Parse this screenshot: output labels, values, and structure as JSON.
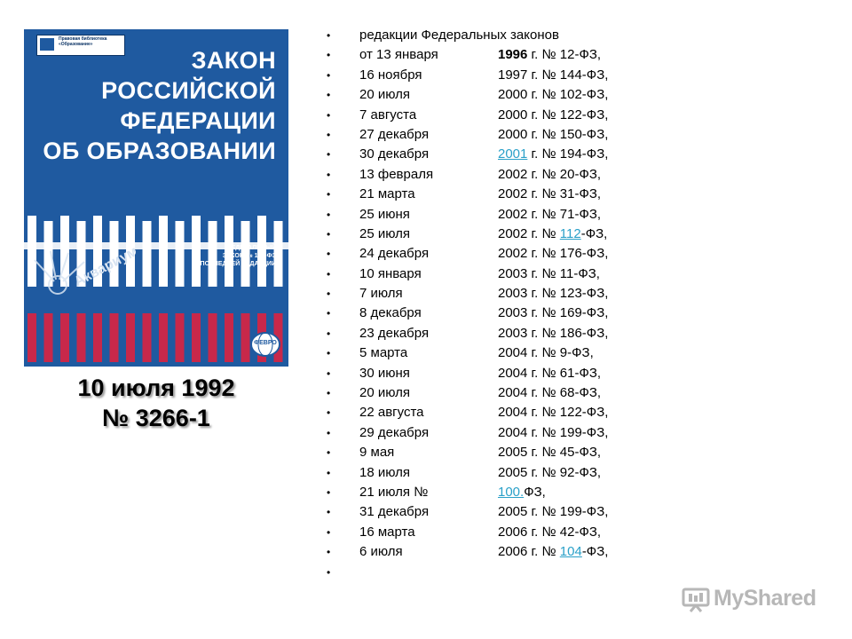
{
  "cover": {
    "title_lines": [
      "ЗАКОН",
      "РОССИЙСКОЙ",
      "ФЕДЕРАЦИИ",
      "ОБ ОБРАЗОВАНИИ"
    ],
    "publisher_text": "Правовая библиотека «Образование»",
    "subtitle_lines": [
      "ФЕДЕРАЛЬНЫЙ",
      "ЗАКОН № 122-ФЗ",
      "В ПОСЛЕДНЕЙ РЕДАКЦИИ"
    ],
    "emblem_text": "Аквариум",
    "globe_text": "ФЕВРО",
    "colors": {
      "blue": "#1f5aa0",
      "red": "#c8284a",
      "white": "#ffffff"
    }
  },
  "caption": {
    "date": "10  июля 1992",
    "number": "№ 3266-1"
  },
  "list": {
    "header": "редакции Федеральных законов",
    "items": [
      {
        "date": " от 13 января",
        "pre": "",
        "year": "1996",
        "link": "",
        "post": " г. № 12-ФЗ,",
        "bold_year": true
      },
      {
        "date": "16 ноября",
        "pre": "",
        "year": "1997",
        "link": "",
        "post": " г. № 144-ФЗ,"
      },
      {
        "date": "20 июля",
        "pre": "",
        "year": "2000",
        "link": "",
        "post": " г. № 102-ФЗ,"
      },
      {
        "date": "7 августа",
        "pre": "",
        "year": "2000",
        "link": "",
        "post": " г. № 122-ФЗ,"
      },
      {
        "date": "27 декабря",
        "pre": "",
        "year": "2000",
        "link": "",
        "post": " г. № 150-ФЗ,"
      },
      {
        "date": "30 декабря",
        "pre": "",
        "year": "",
        "link": "2001",
        "post": " г. № 194-ФЗ,"
      },
      {
        "date": "13 февраля",
        "pre": "",
        "year": "2002",
        "link": "",
        "post": " г. № 20-ФЗ,"
      },
      {
        "date": "21 марта",
        "pre": "",
        "year": "2002",
        "link": "",
        "post": " г. № 31-ФЗ,"
      },
      {
        "date": "25 июня",
        "pre": "",
        "year": "2002",
        "link": "",
        "post": " г. № 71-ФЗ,"
      },
      {
        "date": "25 июля",
        "pre": "2002 г. № ",
        "year": "",
        "link": "112",
        "post": "-ФЗ,"
      },
      {
        "date": "24 декабря",
        "pre": "",
        "year": "2002",
        "link": "",
        "post": " г. № 176-ФЗ,"
      },
      {
        "date": "10 января",
        "pre": "",
        "year": "2003",
        "link": "",
        "post": " г. № 11-ФЗ,"
      },
      {
        "date": "7 июля",
        "pre": " ",
        "year": "2003",
        "link": "",
        "post": " г. № 123-ФЗ,"
      },
      {
        "date": "8 декабря",
        "pre": " ",
        "year": "2003",
        "link": "",
        "post": " г. № 169-ФЗ,"
      },
      {
        "date": " 23 декабря",
        "pre": "",
        "year": "2003",
        "link": "",
        "post": " г. № 186-ФЗ,"
      },
      {
        "date": "5 марта",
        "pre": "",
        "year": "2004",
        "link": "",
        "post": " г. № 9-ФЗ,"
      },
      {
        "date": "30 июня",
        "pre": "",
        "year": "2004",
        "link": "",
        "post": " г. № 61-ФЗ,"
      },
      {
        "date": "20 июля",
        "pre": "",
        "year": "2004",
        "link": "",
        "post": " г. № 68-ФЗ,"
      },
      {
        "date": "22 августа",
        "pre": "",
        "year": "2004",
        "link": "",
        "post": " г. № 122-ФЗ,"
      },
      {
        "date": "29 декабря",
        "pre": "",
        "year": "2004",
        "link": "",
        "post": " г. № 199-ФЗ,"
      },
      {
        "date": " 9 мая",
        "pre": "",
        "year": "2005",
        "link": "",
        "post": " г. № 45-ФЗ,"
      },
      {
        "date": " 18 июля",
        "pre": "",
        "year": "2005",
        "link": "",
        "post": " г. № 92-ФЗ,"
      },
      {
        "date": "21 июля №",
        "pre": "       ",
        "year": "",
        "link": "100.",
        "post": "ФЗ,"
      },
      {
        "date": "31 декабря",
        "pre": "",
        "year": "2005",
        "link": "",
        "post": " г. № 199-ФЗ,"
      },
      {
        "date": "16 марта",
        "pre": "",
        "year": "2006",
        "link": "",
        "post": " г. № 42-ФЗ,"
      },
      {
        "date": "6 июля",
        "pre": "2006 г. № ",
        "year": "",
        "link": "104",
        "post": "-ФЗ,"
      },
      {
        "date": "",
        "pre": "",
        "year": "",
        "link": "",
        "post": ""
      }
    ],
    "colors": {
      "link": "#2aa0c8"
    }
  },
  "watermark": {
    "text": "MyShared",
    "icon": "presentation-board-icon",
    "color": "#b7b7b7"
  }
}
